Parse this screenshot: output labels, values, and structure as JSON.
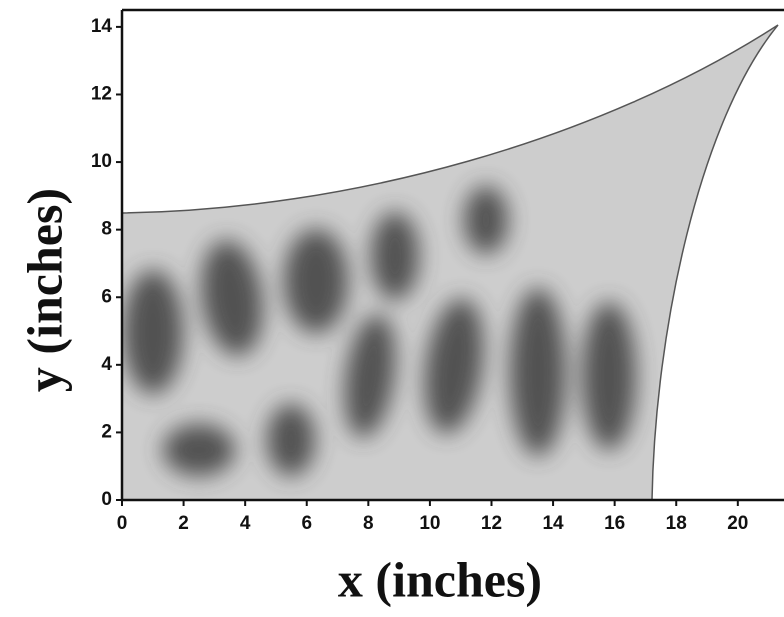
{
  "chart_data": {
    "type": "image",
    "xlabel": "x (inches)",
    "ylabel": "y (inches)",
    "xlim": [
      0,
      21.5
    ],
    "ylim": [
      0,
      14.5
    ],
    "xticks": [
      0,
      2,
      4,
      6,
      8,
      10,
      12,
      14,
      16,
      18,
      20
    ],
    "yticks": [
      0,
      2,
      4,
      6,
      8,
      10,
      12,
      14
    ]
  }
}
